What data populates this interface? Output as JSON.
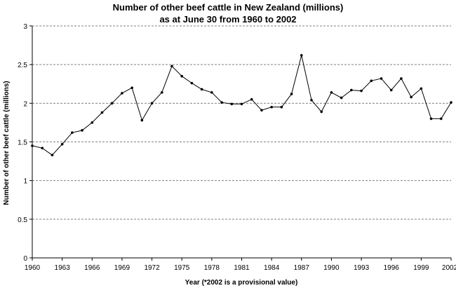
{
  "chart_data": {
    "type": "line",
    "title": "Number of other beef cattle in New Zealand (millions)",
    "subtitle": "as at June 30 from 1960 to 2002",
    "xlabel": "Year (*2002 is a provisional value)",
    "ylabel": "Number of other beef cattle (millions)",
    "ylim": [
      0,
      3
    ],
    "yticks": [
      "0",
      "0.5",
      "1",
      "1.5",
      "2",
      "2.5",
      "3"
    ],
    "xticks": [
      "1960",
      "1963",
      "1966",
      "1969",
      "1972",
      "1975",
      "1978",
      "1981",
      "1984",
      "1987",
      "1990",
      "1993",
      "1996",
      "1999",
      "2002*"
    ],
    "grid": "horizontal dashed",
    "legend": "none",
    "colors": {
      "line": "#000000",
      "grid": "#808080",
      "axis": "#000000"
    },
    "x": [
      1960,
      1961,
      1962,
      1963,
      1964,
      1965,
      1966,
      1967,
      1968,
      1969,
      1970,
      1971,
      1972,
      1973,
      1974,
      1975,
      1976,
      1977,
      1978,
      1979,
      1980,
      1981,
      1982,
      1983,
      1984,
      1985,
      1986,
      1987,
      1988,
      1989,
      1990,
      1991,
      1992,
      1993,
      1994,
      1995,
      1996,
      1997,
      1998,
      1999,
      2000,
      2001,
      2002
    ],
    "series": [
      {
        "values": [
          1.45,
          1.42,
          1.33,
          1.47,
          1.62,
          1.65,
          1.75,
          1.88,
          2.0,
          2.13,
          2.2,
          1.78,
          2.0,
          2.14,
          2.48,
          2.35,
          2.26,
          2.18,
          2.14,
          2.01,
          1.99,
          1.99,
          2.05,
          1.91,
          1.95,
          1.95,
          2.12,
          2.62,
          2.04,
          1.89,
          2.14,
          2.07,
          2.17,
          2.16,
          2.29,
          2.32,
          2.17,
          2.32,
          2.08,
          2.19,
          1.8,
          1.8,
          2.01
        ]
      }
    ]
  }
}
